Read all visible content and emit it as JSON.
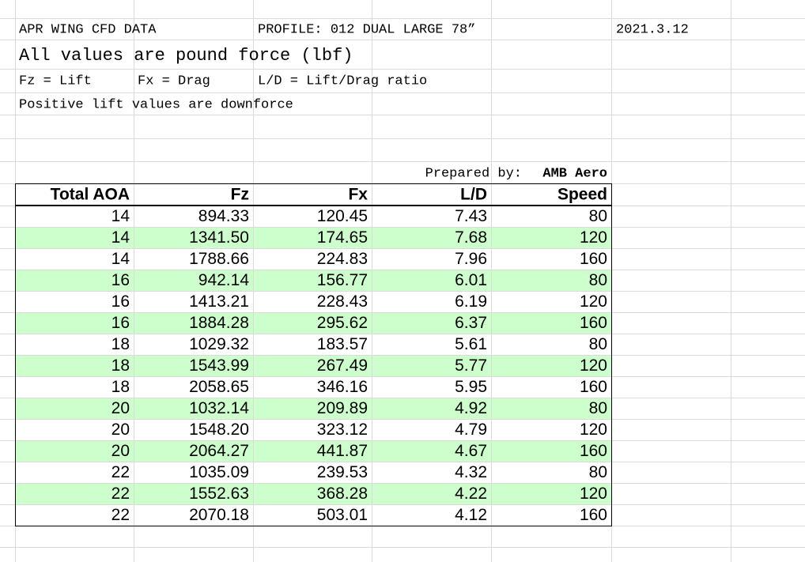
{
  "header": {
    "title": "APR WING CFD DATA",
    "profile": "PROFILE: 012 DUAL LARGE 78”",
    "date": "2021.3.12"
  },
  "units_note": "All values are pound force (lbf)",
  "legend": [
    "Fz = Lift",
    "Fx = Drag",
    "L/D = Lift/Drag ratio"
  ],
  "sign_note": "Positive lift values are downforce",
  "prepared_by": {
    "label": "Prepared by:",
    "name": "AMB Aero"
  },
  "table": {
    "columns": [
      "Total AOA",
      "Fz",
      "Fx",
      "L/D",
      "Speed"
    ],
    "rows": [
      [
        "14",
        "894.33",
        "120.45",
        "7.43",
        "80"
      ],
      [
        "14",
        "1341.50",
        "174.65",
        "7.68",
        "120"
      ],
      [
        "14",
        "1788.66",
        "224.83",
        "7.96",
        "160"
      ],
      [
        "16",
        "942.14",
        "156.77",
        "6.01",
        "80"
      ],
      [
        "16",
        "1413.21",
        "228.43",
        "6.19",
        "120"
      ],
      [
        "16",
        "1884.28",
        "295.62",
        "6.37",
        "160"
      ],
      [
        "18",
        "1029.32",
        "183.57",
        "5.61",
        "80"
      ],
      [
        "18",
        "1543.99",
        "267.49",
        "5.77",
        "120"
      ],
      [
        "18",
        "2058.65",
        "346.16",
        "5.95",
        "160"
      ],
      [
        "20",
        "1032.14",
        "209.89",
        "4.92",
        "80"
      ],
      [
        "20",
        "1548.20",
        "323.12",
        "4.79",
        "120"
      ],
      [
        "20",
        "2064.27",
        "441.87",
        "4.67",
        "160"
      ],
      [
        "22",
        "1035.09",
        "239.53",
        "4.32",
        "80"
      ],
      [
        "22",
        "1552.63",
        "368.28",
        "4.22",
        "120"
      ],
      [
        "22",
        "2070.18",
        "503.01",
        "4.12",
        "160"
      ]
    ]
  }
}
